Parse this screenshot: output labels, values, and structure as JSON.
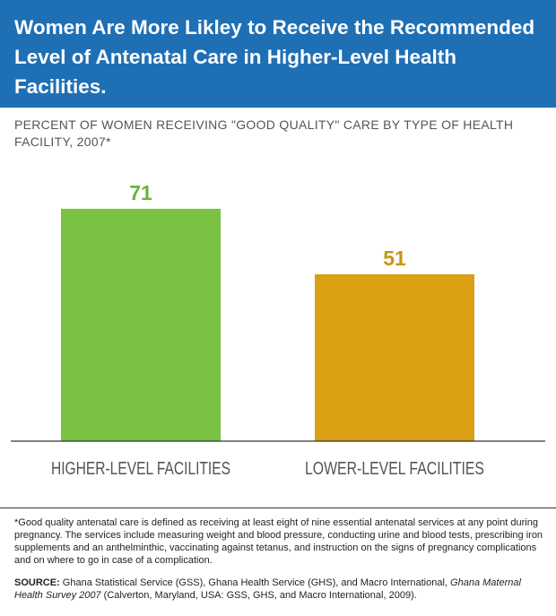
{
  "header": {
    "title": "Women Are More Likley to Receive the Recommended Level of Antenatal Care in Higher-Level Health Facilities."
  },
  "subtitle": "PERCENT OF WOMEN RECEIVING \"GOOD QUALITY\" CARE BY TYPE OF HEALTH FACILITY, 2007*",
  "colors": {
    "header_bg": "#1f6fb5",
    "bar_higher": "#7bc143",
    "bar_lower": "#d8a012",
    "label_higher": "#6ab536",
    "label_lower": "#c99410",
    "axis": "#333333",
    "category_text": "#555555"
  },
  "chart_data": {
    "type": "bar",
    "categories": [
      "HIGHER-LEVEL FACILITIES",
      "LOWER-LEVEL FACILITIES"
    ],
    "values": [
      71,
      51
    ],
    "data_labels": [
      "71",
      "51"
    ],
    "ylim": [
      0,
      100
    ],
    "grid": false,
    "legend": "none"
  },
  "footnote": "*Good quality antenatal care is defined as receiving at least eight of nine essential antenatal services at any point during pregnancy. The services include measuring weight and blood pressure, conducting urine and blood tests, prescribing iron supplements and an anthelminthic, vaccinating against tetanus, and instruction on the signs of pregnancy complications and on where to go in case of a complication.",
  "source": {
    "label": "SOURCE:",
    "text_before": " Ghana Statistical Service (GSS), Ghana Health Service (GHS), and Macro International, ",
    "title": "Ghana Maternal Health Survey 2007",
    "text_after": " (Calverton, Maryland, USA: GSS, GHS, and Macro International, 2009)."
  }
}
